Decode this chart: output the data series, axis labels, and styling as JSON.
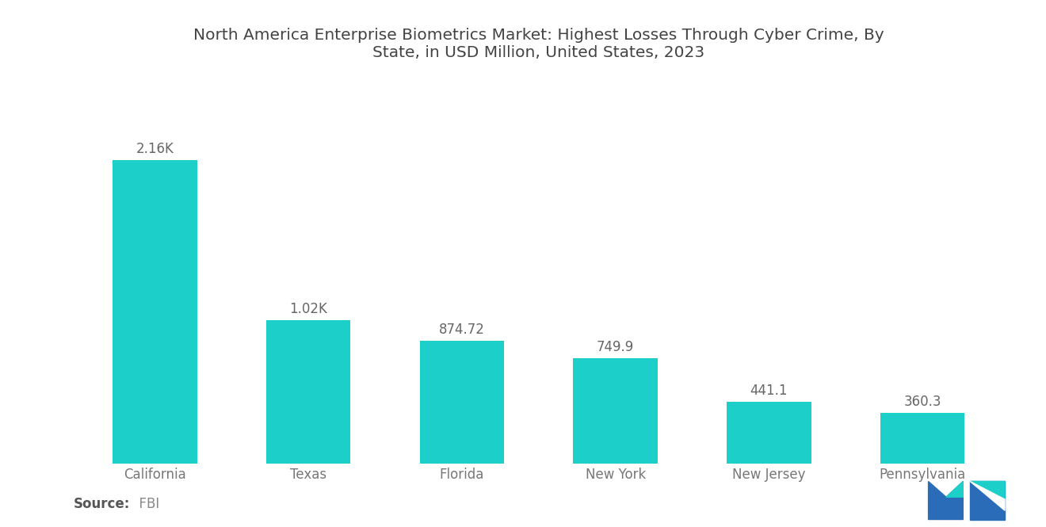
{
  "title_line1": "North America Enterprise Biometrics Market: Highest Losses Through Cyber Crime, By",
  "title_line2": "State, in USD Million, United States, 2023",
  "categories": [
    "California",
    "Texas",
    "Florida",
    "New York",
    "New Jersey",
    "Pennsylvania"
  ],
  "values": [
    2160,
    1020,
    874.72,
    749.9,
    441.1,
    360.3
  ],
  "labels": [
    "2.16K",
    "1.02K",
    "874.72",
    "749.9",
    "441.1",
    "360.3"
  ],
  "bar_color": "#1CCFC9",
  "background_color": "#ffffff",
  "source_bold": "Source:",
  "source_light": "  FBI",
  "title_fontsize": 14.5,
  "label_fontsize": 12,
  "tick_fontsize": 12,
  "source_fontsize": 12,
  "bar_width": 0.55,
  "ylim_max": 2700
}
